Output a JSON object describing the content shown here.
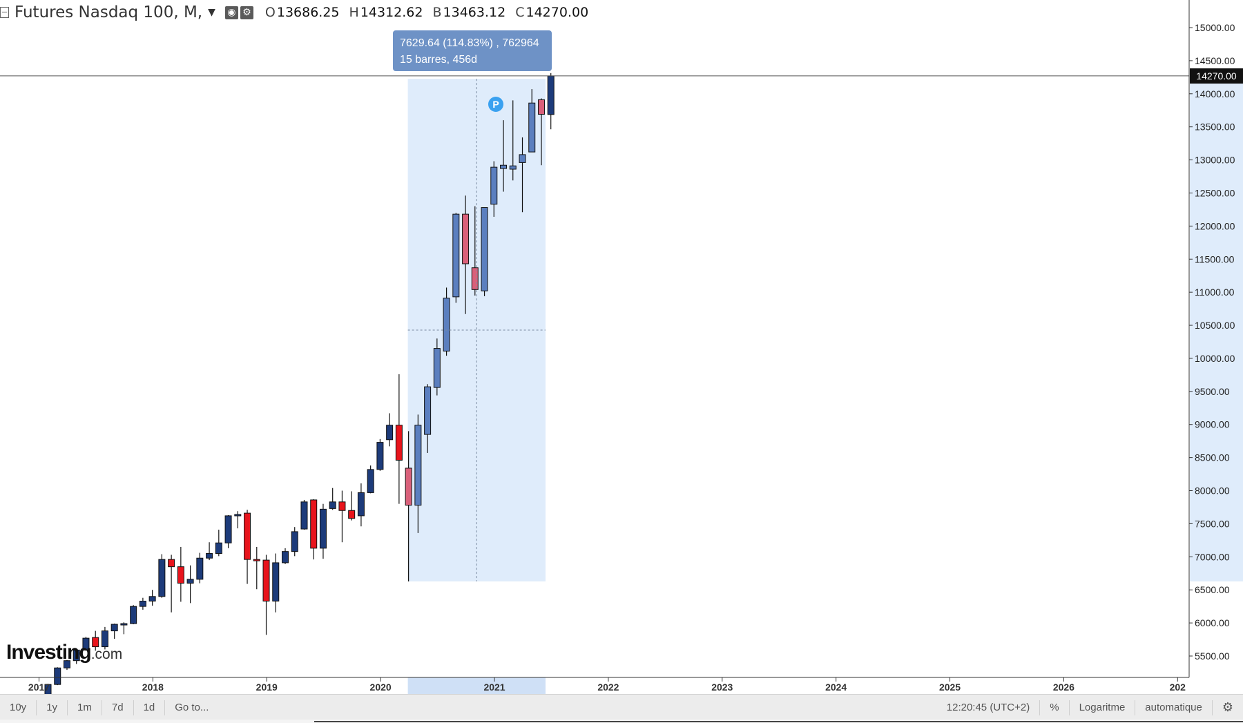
{
  "header": {
    "symbol_title": "Futures Nasdaq 100, M,",
    "ohlc": [
      {
        "key": "O",
        "value": "13686.25"
      },
      {
        "key": "H",
        "value": "14312.62"
      },
      {
        "key": "B",
        "value": "13463.12"
      },
      {
        "key": "C",
        "value": "14270.00"
      }
    ]
  },
  "measure_tooltip": {
    "line1": "7629.64 (114.83%) , 762964",
    "line2": "15 barres, 456d"
  },
  "current_price_label": "14270.00",
  "marker_label": "P",
  "logo": {
    "brand": "Investing",
    "suffix": ".com"
  },
  "toolbar": {
    "ranges": [
      "10y",
      "1y",
      "1m",
      "7d",
      "1d",
      "Go to..."
    ],
    "time": "12:20:45 (UTC+2)",
    "percent": "%",
    "log": "Logaritme",
    "auto": "automatique"
  },
  "colors": {
    "up": "#1d3b7a",
    "down": "#e8141c",
    "up_highlight": "#5b7fbf",
    "down_highlight": "#d9607a",
    "selection": "#dfecfb",
    "tooltip": "#6e92c6"
  },
  "chart_data": {
    "type": "candlestick",
    "title": "Futures Nasdaq 100, M,",
    "interval": "monthly",
    "y_ticks": [
      "5500.00",
      "6000.00",
      "6500.00",
      "7000.00",
      "7500.00",
      "8000.00",
      "8500.00",
      "9000.00",
      "9500.00",
      "10000.00",
      "10500.00",
      "11000.00",
      "11500.00",
      "12000.00",
      "12500.00",
      "13000.00",
      "13500.00",
      "14000.00",
      "14500.00",
      "15000.00"
    ],
    "x_ticks": [
      "2017",
      "2018",
      "2019",
      "2020",
      "2021",
      "2022",
      "2023",
      "2024",
      "2025",
      "2026",
      "202"
    ],
    "ylim": [
      5200,
      15200
    ],
    "xlim": [
      "2016-12",
      "2026-12"
    ],
    "selection": {
      "from": "2020-03",
      "to": "2021-05",
      "low": 6628,
      "high": 14257
    },
    "current_price": 14270.0,
    "candles": [
      {
        "date": "2017-01",
        "o": 4870,
        "h": 5080,
        "l": 4855,
        "c": 5070
      },
      {
        "date": "2017-02",
        "o": 5070,
        "h": 5330,
        "l": 5060,
        "c": 5320
      },
      {
        "date": "2017-03",
        "o": 5320,
        "h": 5440,
        "l": 5290,
        "c": 5430
      },
      {
        "date": "2017-04",
        "o": 5430,
        "h": 5610,
        "l": 5380,
        "c": 5590
      },
      {
        "date": "2017-05",
        "o": 5590,
        "h": 5790,
        "l": 5580,
        "c": 5770
      },
      {
        "date": "2017-06",
        "o": 5780,
        "h": 5880,
        "l": 5580,
        "c": 5640
      },
      {
        "date": "2017-07",
        "o": 5640,
        "h": 5940,
        "l": 5600,
        "c": 5880
      },
      {
        "date": "2017-08",
        "o": 5880,
        "h": 5990,
        "l": 5760,
        "c": 5980
      },
      {
        "date": "2017-09",
        "o": 5980,
        "h": 6010,
        "l": 5830,
        "c": 5990
      },
      {
        "date": "2017-10",
        "o": 5990,
        "h": 6270,
        "l": 5980,
        "c": 6250
      },
      {
        "date": "2017-11",
        "o": 6250,
        "h": 6380,
        "l": 6200,
        "c": 6330
      },
      {
        "date": "2017-12",
        "o": 6330,
        "h": 6500,
        "l": 6260,
        "c": 6400
      },
      {
        "date": "2018-01",
        "o": 6400,
        "h": 7040,
        "l": 6380,
        "c": 6960
      },
      {
        "date": "2018-02",
        "o": 6960,
        "h": 7030,
        "l": 6160,
        "c": 6850
      },
      {
        "date": "2018-03",
        "o": 6850,
        "h": 7150,
        "l": 6320,
        "c": 6600
      },
      {
        "date": "2018-04",
        "o": 6600,
        "h": 6870,
        "l": 6300,
        "c": 6660
      },
      {
        "date": "2018-05",
        "o": 6660,
        "h": 7060,
        "l": 6600,
        "c": 6980
      },
      {
        "date": "2018-06",
        "o": 6980,
        "h": 7220,
        "l": 6950,
        "c": 7050
      },
      {
        "date": "2018-07",
        "o": 7050,
        "h": 7410,
        "l": 7010,
        "c": 7210
      },
      {
        "date": "2018-08",
        "o": 7210,
        "h": 7630,
        "l": 7130,
        "c": 7620
      },
      {
        "date": "2018-09",
        "o": 7620,
        "h": 7690,
        "l": 7430,
        "c": 7640
      },
      {
        "date": "2018-10",
        "o": 7660,
        "h": 7710,
        "l": 6590,
        "c": 6960
      },
      {
        "date": "2018-11",
        "o": 6960,
        "h": 7150,
        "l": 6510,
        "c": 6950
      },
      {
        "date": "2018-12",
        "o": 6950,
        "h": 7030,
        "l": 5820,
        "c": 6330
      },
      {
        "date": "2019-01",
        "o": 6330,
        "h": 7050,
        "l": 6160,
        "c": 6910
      },
      {
        "date": "2019-02",
        "o": 6910,
        "h": 7130,
        "l": 6890,
        "c": 7080
      },
      {
        "date": "2019-03",
        "o": 7080,
        "h": 7450,
        "l": 7010,
        "c": 7380
      },
      {
        "date": "2019-04",
        "o": 7420,
        "h": 7860,
        "l": 7410,
        "c": 7830
      },
      {
        "date": "2019-05",
        "o": 7860,
        "h": 7870,
        "l": 6960,
        "c": 7130
      },
      {
        "date": "2019-06",
        "o": 7130,
        "h": 7800,
        "l": 6970,
        "c": 7720
      },
      {
        "date": "2019-07",
        "o": 7730,
        "h": 8040,
        "l": 7710,
        "c": 7830
      },
      {
        "date": "2019-08",
        "o": 7830,
        "h": 8000,
        "l": 7220,
        "c": 7700
      },
      {
        "date": "2019-09",
        "o": 7700,
        "h": 7990,
        "l": 7550,
        "c": 7580
      },
      {
        "date": "2019-10",
        "o": 7620,
        "h": 8110,
        "l": 7460,
        "c": 7970
      },
      {
        "date": "2019-11",
        "o": 7970,
        "h": 8380,
        "l": 7960,
        "c": 8320
      },
      {
        "date": "2019-12",
        "o": 8320,
        "h": 8780,
        "l": 8300,
        "c": 8730
      },
      {
        "date": "2020-01",
        "o": 8770,
        "h": 9170,
        "l": 8670,
        "c": 8990
      },
      {
        "date": "2020-02",
        "o": 8990,
        "h": 9760,
        "l": 7800,
        "c": 8460
      },
      {
        "date": "2020-03",
        "o": 8340,
        "h": 8900,
        "l": 6628,
        "c": 7780
      },
      {
        "date": "2020-04",
        "o": 7780,
        "h": 9150,
        "l": 7360,
        "c": 8990
      },
      {
        "date": "2020-05",
        "o": 8850,
        "h": 9610,
        "l": 8570,
        "c": 9570
      },
      {
        "date": "2020-06",
        "o": 9560,
        "h": 10300,
        "l": 9440,
        "c": 10150
      },
      {
        "date": "2020-07",
        "o": 10110,
        "h": 11070,
        "l": 10040,
        "c": 10910
      },
      {
        "date": "2020-08",
        "o": 10930,
        "h": 12200,
        "l": 10840,
        "c": 12180
      },
      {
        "date": "2020-09",
        "o": 12180,
        "h": 12460,
        "l": 10670,
        "c": 11430
      },
      {
        "date": "2020-10",
        "o": 11370,
        "h": 12300,
        "l": 10950,
        "c": 11040
      },
      {
        "date": "2020-11",
        "o": 11020,
        "h": 12230,
        "l": 10940,
        "c": 12280
      },
      {
        "date": "2020-12",
        "o": 12330,
        "h": 12980,
        "l": 12140,
        "c": 12890
      },
      {
        "date": "2021-01",
        "o": 12870,
        "h": 13600,
        "l": 12520,
        "c": 12920
      },
      {
        "date": "2021-02",
        "o": 12860,
        "h": 13900,
        "l": 12690,
        "c": 12910
      },
      {
        "date": "2021-03",
        "o": 12960,
        "h": 13340,
        "l": 12210,
        "c": 13080
      },
      {
        "date": "2021-04",
        "o": 13120,
        "h": 14070,
        "l": 13120,
        "c": 13860
      },
      {
        "date": "2021-05",
        "o": 13910,
        "h": 13930,
        "l": 12920,
        "c": 13690
      },
      {
        "date": "2021-06",
        "o": 13686.25,
        "h": 14312.62,
        "l": 13463.12,
        "c": 14270.0
      }
    ]
  }
}
